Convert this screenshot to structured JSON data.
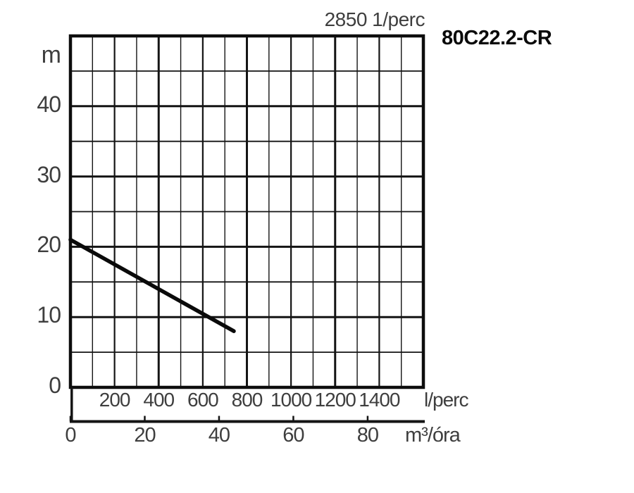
{
  "chart_data": {
    "type": "line",
    "title": "2850 1/perc",
    "model": "80C22.2-CR",
    "y_axis": {
      "label": "m",
      "min": 0,
      "max": 50,
      "minor_step": 5,
      "major_step": 10,
      "tick_labels": [
        40,
        30,
        20,
        10,
        0
      ]
    },
    "x_axis_primary": {
      "label": "l/perc",
      "min": 0,
      "max": 1600,
      "minor_step": 100,
      "major_step": 400,
      "tick_labels": [
        200,
        400,
        600,
        800,
        1000,
        1200,
        1400
      ]
    },
    "x_axis_secondary": {
      "label": "m³/óra",
      "min": 0,
      "max": 95,
      "tick_step": 20,
      "tick_labels": [
        0,
        20,
        40,
        60,
        80
      ]
    },
    "grid": true,
    "legend": false,
    "series": [
      {
        "name": "head-curve",
        "x_unit": "m³/óra",
        "y_unit": "m",
        "points": [
          [
            0,
            21
          ],
          [
            44,
            8
          ]
        ]
      }
    ],
    "colors": {
      "background": "#ffffff",
      "grid": "#141414",
      "border": "#0d0d0d",
      "curve": "#0a0a0a",
      "tick_text": "#3e3e3e",
      "model_text": "#0a0a0a"
    }
  }
}
